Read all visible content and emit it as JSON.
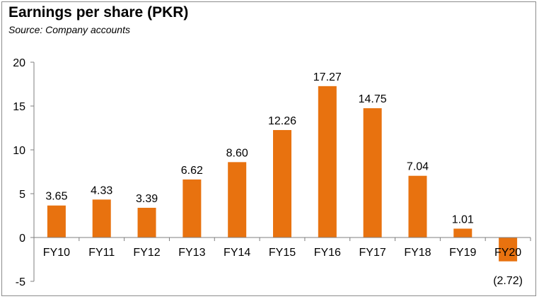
{
  "chart_data": {
    "type": "bar",
    "title": "Earnings per share (PKR)",
    "subtitle": "Source: Company accounts",
    "categories": [
      "FY10",
      "FY11",
      "FY12",
      "FY13",
      "FY14",
      "FY15",
      "FY16",
      "FY17",
      "FY18",
      "FY19",
      "FY20"
    ],
    "values": [
      3.65,
      4.33,
      3.39,
      6.62,
      8.6,
      12.26,
      17.27,
      14.75,
      7.04,
      1.01,
      -2.72
    ],
    "data_labels": [
      "3.65",
      "4.33",
      "3.39",
      "6.62",
      "8.60",
      "12.26",
      "17.27",
      "14.75",
      "7.04",
      "1.01",
      "(2.72)"
    ],
    "yticks": [
      "20",
      "15",
      "10",
      "5",
      "0",
      "-5"
    ],
    "ytick_values": [
      20,
      15,
      10,
      5,
      0,
      -5
    ],
    "ylim": [
      -5,
      20
    ],
    "grid": false,
    "bar_color": "#e8720f",
    "axis_color": "#7f7f7f"
  }
}
